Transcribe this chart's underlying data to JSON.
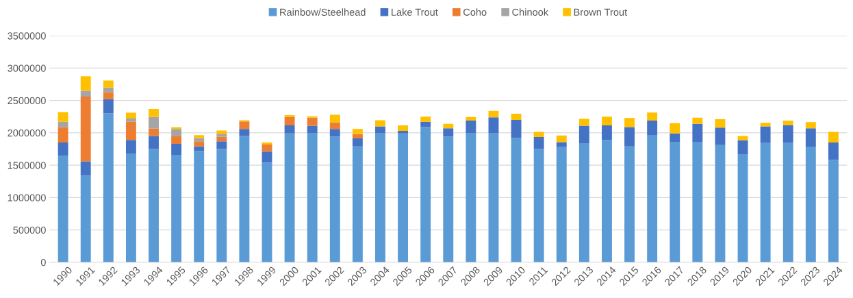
{
  "chart_data": {
    "type": "bar",
    "stacked": true,
    "legend": "top",
    "grid": "y",
    "categories": [
      "1990",
      "1991",
      "1992",
      "1993",
      "1994",
      "1995",
      "1996",
      "1997",
      "1998",
      "1999",
      "2000",
      "2001",
      "2002",
      "2003",
      "2004",
      "2005",
      "2006",
      "2007",
      "2008",
      "2009",
      "2010",
      "2011",
      "2012",
      "2013",
      "2014",
      "2015",
      "2016",
      "2017",
      "2018",
      "2019",
      "2020",
      "2021",
      "2022",
      "2023",
      "2024"
    ],
    "ylim": [
      0,
      3500000
    ],
    "yticks": [
      0,
      500000,
      1000000,
      1500000,
      2000000,
      2500000,
      3000000,
      3500000
    ],
    "series": [
      {
        "name": "Rainbow/Steelhead",
        "color": "#5b9bd5",
        "values": [
          1650000,
          1340000,
          2300000,
          1680000,
          1750000,
          1660000,
          1720000,
          1750000,
          1950000,
          1540000,
          1990000,
          2000000,
          1940000,
          1790000,
          2000000,
          1990000,
          2090000,
          1940000,
          2000000,
          2000000,
          1920000,
          1750000,
          1780000,
          1840000,
          1890000,
          1790000,
          1960000,
          1860000,
          1860000,
          1810000,
          1670000,
          1850000,
          1850000,
          1780000,
          1580000
        ]
      },
      {
        "name": "Lake Trout",
        "color": "#4472c4",
        "values": [
          200000,
          220000,
          220000,
          210000,
          200000,
          170000,
          70000,
          120000,
          110000,
          170000,
          125000,
          110000,
          120000,
          125000,
          100000,
          40000,
          80000,
          130000,
          190000,
          240000,
          280000,
          185000,
          75000,
          270000,
          225000,
          300000,
          230000,
          130000,
          280000,
          270000,
          215000,
          250000,
          270000,
          290000,
          270000
        ]
      },
      {
        "name": "Coho",
        "color": "#ed7d31",
        "values": [
          240000,
          1000000,
          110000,
          280000,
          115000,
          125000,
          80000,
          70000,
          115000,
          110000,
          130000,
          125000,
          100000,
          65000,
          0,
          0,
          0,
          0,
          0,
          0,
          0,
          0,
          0,
          0,
          0,
          0,
          0,
          0,
          0,
          0,
          0,
          0,
          0,
          0,
          0
        ]
      },
      {
        "name": "Chinook",
        "color": "#a5a5a5",
        "values": [
          80000,
          90000,
          70000,
          50000,
          180000,
          105000,
          50000,
          45000,
          0,
          0,
          0,
          0,
          0,
          0,
          0,
          0,
          0,
          0,
          0,
          0,
          0,
          0,
          0,
          0,
          0,
          0,
          0,
          0,
          0,
          0,
          0,
          0,
          0,
          0,
          0
        ]
      },
      {
        "name": "Brown Trout",
        "color": "#ffc000",
        "values": [
          150000,
          225000,
          110000,
          90000,
          125000,
          25000,
          45000,
          50000,
          20000,
          30000,
          30000,
          20000,
          120000,
          80000,
          95000,
          85000,
          80000,
          70000,
          55000,
          100000,
          95000,
          80000,
          105000,
          105000,
          135000,
          140000,
          125000,
          160000,
          95000,
          130000,
          65000,
          55000,
          70000,
          95000,
          165000
        ]
      }
    ]
  }
}
